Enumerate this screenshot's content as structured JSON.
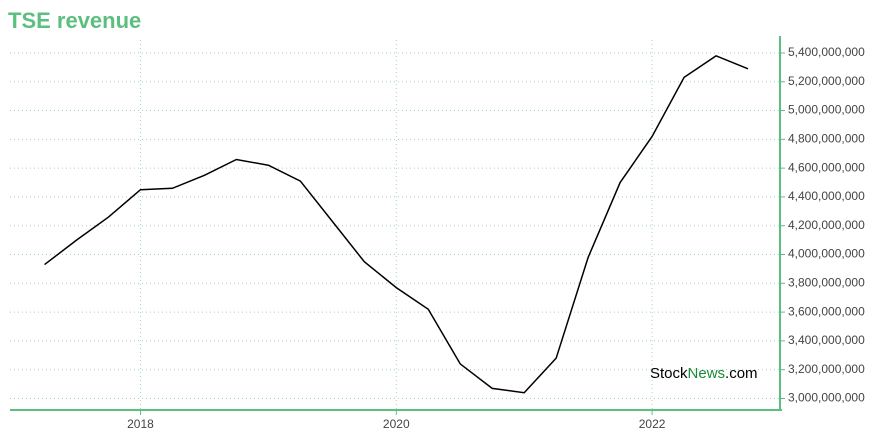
{
  "chart_data": {
    "type": "line",
    "title": "TSE revenue",
    "x": [
      2017.25,
      2017.5,
      2017.75,
      2018,
      2018.25,
      2018.5,
      2018.75,
      2019,
      2019.25,
      2019.5,
      2019.75,
      2020,
      2020.25,
      2020.5,
      2020.75,
      2021,
      2021.25,
      2021.5,
      2021.75,
      2022,
      2022.25,
      2022.5,
      2022.75
    ],
    "series": [
      {
        "name": "TSE revenue",
        "color": "#000000",
        "values": [
          3930000000,
          4100000000,
          4260000000,
          4450000000,
          4460000000,
          4550000000,
          4660000000,
          4620000000,
          4510000000,
          4230000000,
          3950000000,
          3770000000,
          3620000000,
          3240000000,
          3070000000,
          3040000000,
          3280000000,
          3980000000,
          4500000000,
          4820000000,
          5230000000,
          5380000000,
          5290000000
        ]
      }
    ],
    "xlim": [
      2016.98,
      2023
    ],
    "xticks": [
      2018,
      2020,
      2022
    ],
    "ylim": [
      2920000000,
      5490000000
    ],
    "yticks": [
      {
        "value": 3000000000,
        "label": "3,000,000,000"
      },
      {
        "value": 3200000000,
        "label": "3,200,000,000"
      },
      {
        "value": 3400000000,
        "label": "3,400,000,000"
      },
      {
        "value": 3600000000,
        "label": "3,600,000,000"
      },
      {
        "value": 3800000000,
        "label": "3,800,000,000"
      },
      {
        "value": 4000000000,
        "label": "4,000,000,000"
      },
      {
        "value": 4200000000,
        "label": "4,200,000,000"
      },
      {
        "value": 4400000000,
        "label": "4,400,000,000"
      },
      {
        "value": 4600000000,
        "label": "4,600,000,000"
      },
      {
        "value": 4800000000,
        "label": "4,800,000,000"
      },
      {
        "value": 5000000000,
        "label": "5,000,000,000"
      },
      {
        "value": 5200000000,
        "label": "5,200,000,000"
      },
      {
        "value": 5400000000,
        "label": "5,400,000,000"
      }
    ],
    "grid": true,
    "axis_color": "#5cbf7f",
    "watermark": [
      "Stock",
      "News",
      ".com"
    ]
  }
}
